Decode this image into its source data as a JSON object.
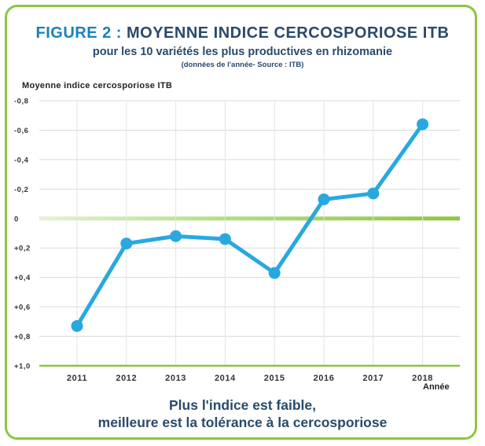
{
  "chart_data": {
    "type": "line",
    "title_figure": "FIGURE 2 :",
    "title_main": "MOYENNE INDICE CERCOSPORIOSE ITB",
    "subtitle": "pour les 10 variétés les plus productives en rhizomanie",
    "note": "(données de l'année- Source : ITB)",
    "ylabel": "Moyenne indice cercosporiose ITB",
    "xlabel": "Année",
    "x": [
      "2011",
      "2012",
      "2013",
      "2014",
      "2015",
      "2016",
      "2017",
      "2018"
    ],
    "values": [
      0.73,
      0.17,
      0.12,
      0.14,
      0.37,
      -0.13,
      -0.17,
      -0.64
    ],
    "ylim": [
      -0.8,
      1.0
    ],
    "yaxis_inverted": true,
    "yticks": [
      -0.8,
      -0.6,
      -0.4,
      -0.2,
      0,
      0.2,
      0.4,
      0.6,
      0.8,
      1.0
    ],
    "ytick_labels": [
      "-0,8",
      "-0,6",
      "-0,4",
      "-0,2",
      "0",
      "+0,2",
      "+0,4",
      "+0,6",
      "+0,8",
      "+1,0"
    ],
    "grid": true,
    "line_color": "#29a8e0",
    "zero_line_color": "#8cc63f",
    "footer_line1": "Plus l'indice est faible,",
    "footer_line2": "meilleure est la tolérance à la cercosporiose"
  }
}
